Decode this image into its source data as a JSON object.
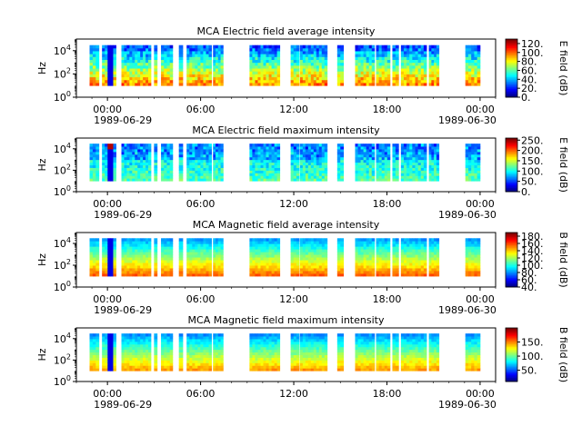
{
  "chart_data": [
    {
      "type": "heatmap",
      "title": "MCA  Electric field average intensity",
      "ylabel": "Hz",
      "yticks": [
        "10^0",
        "10^2",
        "10^4"
      ],
      "ylim": [
        1,
        100000
      ],
      "xlim": [
        "1989-06-28 22:00",
        "1989-06-30 01:00"
      ],
      "xticks": [
        "00:00",
        "06:00",
        "12:00",
        "18:00",
        "00:00"
      ],
      "xtick_dates": [
        "1989-06-29",
        "1989-06-30"
      ],
      "colorbar": {
        "label": "E field (dB)",
        "ticks": [
          "0.",
          "20.",
          "40.",
          "60.",
          "80.",
          "100.",
          "120."
        ],
        "range": [
          0,
          130
        ]
      },
      "colormap": "jet"
    },
    {
      "type": "heatmap",
      "title": "MCA  Electric field maximum intensity",
      "ylabel": "Hz",
      "yticks": [
        "10^0",
        "10^2",
        "10^4"
      ],
      "ylim": [
        1,
        100000
      ],
      "xlim": [
        "1989-06-28 22:00",
        "1989-06-30 01:00"
      ],
      "xticks": [
        "00:00",
        "06:00",
        "12:00",
        "18:00",
        "00:00"
      ],
      "xtick_dates": [
        "1989-06-29",
        "1989-06-30"
      ],
      "colorbar": {
        "label": "E field (dB)",
        "ticks": [
          "0.",
          "50.",
          "100.",
          "150.",
          "200.",
          "250."
        ],
        "range": [
          0,
          260
        ]
      },
      "colormap": "jet"
    },
    {
      "type": "heatmap",
      "title": "MCA  Magnetic field average intensity",
      "ylabel": "Hz",
      "yticks": [
        "10^0",
        "10^2",
        "10^4"
      ],
      "ylim": [
        1,
        100000
      ],
      "xlim": [
        "1989-06-28 22:00",
        "1989-06-30 01:00"
      ],
      "xticks": [
        "00:00",
        "06:00",
        "12:00",
        "18:00",
        "00:00"
      ],
      "xtick_dates": [
        "1989-06-29",
        "1989-06-30"
      ],
      "colorbar": {
        "label": "B field (dB)",
        "ticks": [
          "40.",
          "60.",
          "80.",
          "100.",
          "120.",
          "140.",
          "160.",
          "180."
        ],
        "range": [
          40,
          190
        ]
      },
      "colormap": "jet"
    },
    {
      "type": "heatmap",
      "title": "MCA  Magnetic field maximum intensity",
      "ylabel": "Hz",
      "yticks": [
        "10^0",
        "10^2",
        "10^4"
      ],
      "ylim": [
        1,
        100000
      ],
      "xlim": [
        "1989-06-28 22:00",
        "1989-06-30 01:00"
      ],
      "xticks": [
        "00:00",
        "06:00",
        "12:00",
        "18:00",
        "00:00"
      ],
      "xtick_dates": [
        "1989-06-29",
        "1989-06-30"
      ],
      "colorbar": {
        "label": "B field (dB)",
        "ticks": [
          "50.",
          "100.",
          "150."
        ],
        "range": [
          10,
          200
        ]
      },
      "colormap": "jet"
    }
  ]
}
